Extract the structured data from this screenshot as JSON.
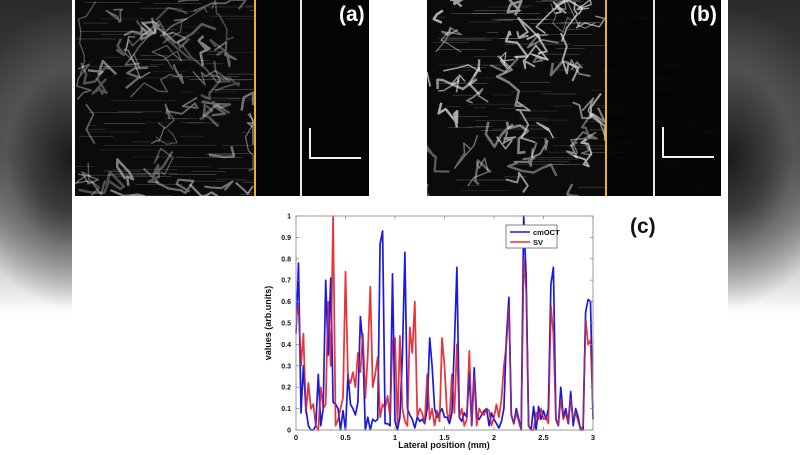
{
  "panels": [
    {
      "id": "a",
      "label": "(a)"
    },
    {
      "id": "b",
      "label": "(b)"
    }
  ],
  "chart_panel_label": "(c)",
  "colors": {
    "cmOCT": "#1a1adb",
    "SV": "#e8343c",
    "divider_yellow": "#f2b01e",
    "scale_bar": "#f2f2f2"
  },
  "chart_data": {
    "type": "line",
    "title": "",
    "xlabel": "Lateral position (mm)",
    "ylabel": "values (arb.units)",
    "xlim": [
      0,
      3
    ],
    "ylim": [
      0,
      1
    ],
    "xticks": [
      "0",
      "0.5",
      "1",
      "1.5",
      "2",
      "2.5",
      "3"
    ],
    "yticks": [
      "0",
      "0.1",
      "0.2",
      "0.3",
      "0.4",
      "0.5",
      "0.6",
      "0.7",
      "0.8",
      "0.9",
      "1"
    ],
    "grid": false,
    "legend_position": "upper right",
    "x": [
      0,
      0.025,
      0.05,
      0.075,
      0.1,
      0.125,
      0.15,
      0.175,
      0.2,
      0.225,
      0.25,
      0.275,
      0.3,
      0.325,
      0.35,
      0.375,
      0.4,
      0.425,
      0.45,
      0.475,
      0.5,
      0.525,
      0.55,
      0.575,
      0.6,
      0.625,
      0.65,
      0.675,
      0.7,
      0.725,
      0.75,
      0.775,
      0.8,
      0.825,
      0.85,
      0.875,
      0.9,
      0.925,
      0.95,
      0.975,
      1,
      1.025,
      1.05,
      1.075,
      1.1,
      1.125,
      1.15,
      1.175,
      1.2,
      1.225,
      1.25,
      1.275,
      1.3,
      1.325,
      1.35,
      1.375,
      1.4,
      1.425,
      1.45,
      1.475,
      1.5,
      1.525,
      1.55,
      1.575,
      1.6,
      1.625,
      1.65,
      1.675,
      1.7,
      1.725,
      1.75,
      1.775,
      1.8,
      1.825,
      1.85,
      1.875,
      1.9,
      1.925,
      1.95,
      1.975,
      2,
      2.025,
      2.05,
      2.075,
      2.1,
      2.125,
      2.15,
      2.175,
      2.2,
      2.225,
      2.25,
      2.275,
      2.3,
      2.325,
      2.35,
      2.375,
      2.4,
      2.425,
      2.45,
      2.475,
      2.5,
      2.525,
      2.55,
      2.575,
      2.6,
      2.625,
      2.65,
      2.675,
      2.7,
      2.725,
      2.75,
      2.775,
      2.8,
      2.825,
      2.85,
      2.875,
      2.9,
      2.925,
      2.95,
      2.975,
      3
    ],
    "series": [
      {
        "name": "cmOCT",
        "color": "#1a1adb",
        "values": [
          0.45,
          0.78,
          0.08,
          0.3,
          0.1,
          0.02,
          0.0,
          0.0,
          0.02,
          0.26,
          0.02,
          0.1,
          0.7,
          0.35,
          0.71,
          0.13,
          0.12,
          0.1,
          0.0,
          0.09,
          0.0,
          0.26,
          0.12,
          0.1,
          0.07,
          0.13,
          0.53,
          0.4,
          0.0,
          0.06,
          0.0,
          0.05,
          0.04,
          0.05,
          0.87,
          0.93,
          0.03,
          0.03,
          0.02,
          0.73,
          0.04,
          0.0,
          0.06,
          0.35,
          0.83,
          0.1,
          0.07,
          0.05,
          0.01,
          0.06,
          0.04,
          0.05,
          0.03,
          0.1,
          0.43,
          0.3,
          0.1,
          0.06,
          0.08,
          0.1,
          0.06,
          0.06,
          0.03,
          0.08,
          0.4,
          0.76,
          0.06,
          0.04,
          0.08,
          0.06,
          0.27,
          0.02,
          0.29,
          0.06,
          0.05,
          0.07,
          0.09,
          0.1,
          0.02,
          0.08,
          0.05,
          0.03,
          0.01,
          0.04,
          0.1,
          0.43,
          0.62,
          0.07,
          0.03,
          0.1,
          0.05,
          0.0,
          1.0,
          0.71,
          0.02,
          0.0,
          0.11,
          0.0,
          0.11,
          0.05,
          0.09,
          0.05,
          0.1,
          0.68,
          0.76,
          0.05,
          0.02,
          0.2,
          0.06,
          0.1,
          0.03,
          0.18,
          0.02,
          0.1,
          0.06,
          0.0,
          0.0,
          0.55,
          0.61,
          0.6,
          0.05
        ]
      },
      {
        "name": "SV",
        "color": "#e8343c",
        "values": [
          0.52,
          0.58,
          0.3,
          0.45,
          0.08,
          0.22,
          0.1,
          0.12,
          0.02,
          0.0,
          0.2,
          0.1,
          0.12,
          0.6,
          0.3,
          1.0,
          0.02,
          0.05,
          0.1,
          0.15,
          0.74,
          0.24,
          0.22,
          0.27,
          0.2,
          0.36,
          0.27,
          0.45,
          0.15,
          0.35,
          0.67,
          0.2,
          0.26,
          0.34,
          0.06,
          0.12,
          0.1,
          0.16,
          0.06,
          0.42,
          0.43,
          0.02,
          0.44,
          0.1,
          0.04,
          0.02,
          0.48,
          0.36,
          0.6,
          0.06,
          0.1,
          0.08,
          0.03,
          0.26,
          0.05,
          0.1,
          0.02,
          0.09,
          0.04,
          0.43,
          0.3,
          0.08,
          0.05,
          0.26,
          0.08,
          0.4,
          0.06,
          0.1,
          0.02,
          0.05,
          0.37,
          0.02,
          0.26,
          0.02,
          0.1,
          0.08,
          0.07,
          0.1,
          0.09,
          0.02,
          0.06,
          0.12,
          0.06,
          0.14,
          0.3,
          0.4,
          0.58,
          0.07,
          0.03,
          0.08,
          0.04,
          0.0,
          0.8,
          0.65,
          0.02,
          0.0,
          0.0,
          0.08,
          0.05,
          0.1,
          0.05,
          0.06,
          0.03,
          0.58,
          0.45,
          0.05,
          0.02,
          0.15,
          0.05,
          0.08,
          0.03,
          0.15,
          0.05,
          0.08,
          0.04,
          0.0,
          0.02,
          0.52,
          0.4,
          0.42,
          0.1
        ]
      }
    ]
  }
}
